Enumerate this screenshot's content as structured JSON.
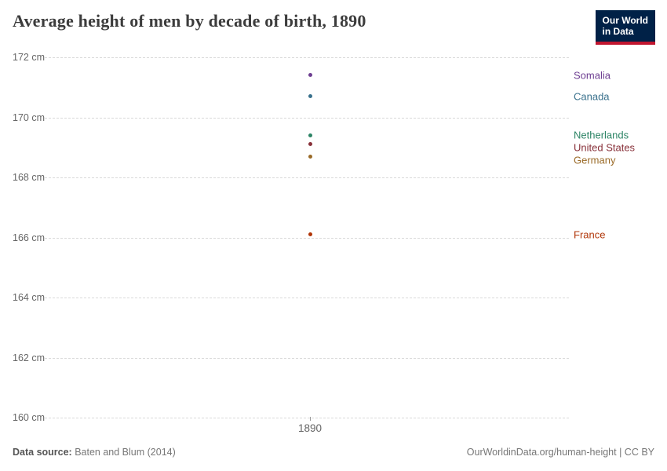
{
  "header": {
    "title": "Average height of men by decade of birth, 1890",
    "logo": {
      "line1": "Our World",
      "line2": "in Data"
    }
  },
  "chart_data": {
    "type": "scatter",
    "title": "Average height of men by decade of birth, 1890",
    "x": [
      1890
    ],
    "x_tick_label": "1890",
    "ylim": [
      160,
      172
    ],
    "yticks": [
      160,
      162,
      164,
      166,
      168,
      170,
      172
    ],
    "ytick_suffix": " cm",
    "grid": "dashed horizontal",
    "legend_position": "right-edge labels",
    "series": [
      {
        "name": "Somalia",
        "value": 171.4,
        "color": "#6D3E91"
      },
      {
        "name": "Canada",
        "value": 170.7,
        "color": "#38708C"
      },
      {
        "name": "Netherlands",
        "value": 169.4,
        "color": "#2C8465"
      },
      {
        "name": "United States",
        "value": 169.1,
        "color": "#883039"
      },
      {
        "name": "Germany",
        "value": 168.7,
        "color": "#9A6A27"
      },
      {
        "name": "France",
        "value": 166.1,
        "color": "#B13507"
      }
    ]
  },
  "footer": {
    "source_label": "Data source:",
    "source_value": " Baten and Blum (2014)",
    "credit": "OurWorldinData.org/human-height | CC BY"
  }
}
